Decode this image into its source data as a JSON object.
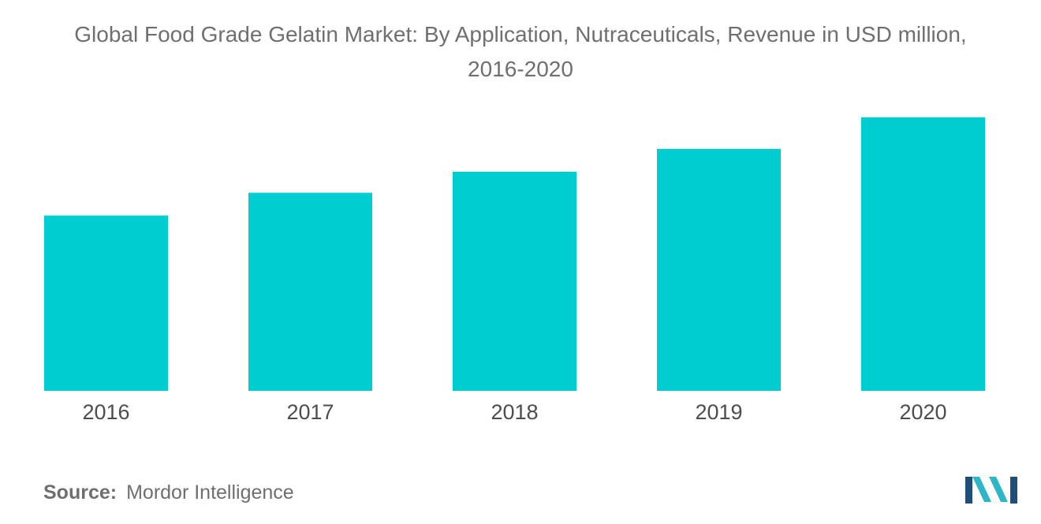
{
  "title_line1": "Global Food Grade Gelatin Market: By Application, Nutraceuticals, Revenue in USD million,",
  "title_line2": "2016-2020",
  "source_label": "Source:",
  "source_value": "Mordor Intelligence",
  "logo_icon": "mordor-intelligence-logo",
  "colors": {
    "bar": "#00CDD0",
    "logo_dark": "#1F4E79",
    "logo_teal": "#2FB5C8"
  },
  "chart_data": {
    "type": "bar",
    "categories": [
      "2016",
      "2017",
      "2018",
      "2019",
      "2020"
    ],
    "values": [
      100,
      113,
      125,
      138,
      156
    ],
    "title": "Global Food Grade Gelatin Market: By Application, Nutraceuticals, Revenue in USD million, 2016-2020",
    "xlabel": "",
    "ylabel": "",
    "ylim": [
      0,
      160
    ],
    "grid": false,
    "legend": "none"
  }
}
